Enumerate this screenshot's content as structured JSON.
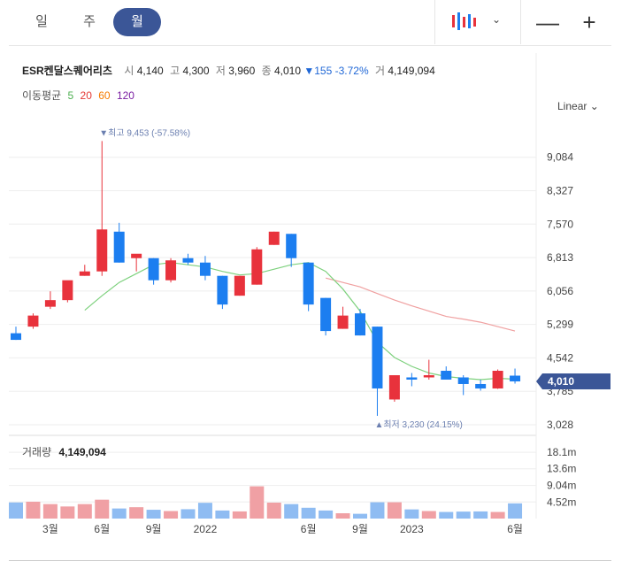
{
  "periods": [
    "일",
    "주",
    "월"
  ],
  "active_period": 2,
  "stock": {
    "name": "ESR켄달스퀘어리츠",
    "open_label": "시",
    "open": "4,140",
    "high_label": "고",
    "high": "4,300",
    "low_label": "저",
    "low": "3,960",
    "close_label": "종",
    "close": "4,010",
    "change": "▼155 -3.72%",
    "volume_label": "거",
    "volume": "4,149,094"
  },
  "ma": {
    "label": "이동평균",
    "periods": [
      "5",
      "20",
      "60",
      "120"
    ],
    "colors": [
      "#4caf50",
      "#e53935",
      "#f57c00",
      "#7b1fa2"
    ]
  },
  "scale_mode": "Linear",
  "colors": {
    "up": "#e8323c",
    "down": "#1c7ef0",
    "ma5": "#7ed17e",
    "ma20": "#f0a0a0",
    "badge": "#3b5697",
    "vol_up": "#f0a0a4",
    "vol_down": "#8fbcf2"
  },
  "chart_data": {
    "type": "candlestick",
    "x_labels": [
      "3월",
      "6월",
      "9월",
      "2022",
      "6월",
      "9월",
      "2023",
      "6월"
    ],
    "x_label_index": [
      2,
      5,
      8,
      11,
      17,
      20,
      23,
      29
    ],
    "y_ticks": [
      "9,084",
      "8,327",
      "7,570",
      "6,813",
      "6,056",
      "5,299",
      "4,542",
      "3,785",
      "3,028"
    ],
    "y_tick_values": [
      9084,
      8327,
      7570,
      6813,
      6056,
      5299,
      4542,
      3785,
      3028
    ],
    "ylim": [
      3028,
      9840
    ],
    "current_price_label": "4,010",
    "current_price": 4010,
    "max_annotation": "최고 9,453 (-57.58%)",
    "min_annotation": "최저 3,230 (24.15%)",
    "ohlc": [
      [
        5100,
        5250,
        4950,
        4950
      ],
      [
        5250,
        5550,
        5200,
        5500
      ],
      [
        5700,
        6050,
        5650,
        5850
      ],
      [
        5850,
        6250,
        5800,
        6300
      ],
      [
        6400,
        6650,
        6400,
        6500
      ],
      [
        6500,
        9453,
        6400,
        7450
      ],
      [
        7400,
        7600,
        6700,
        6700
      ],
      [
        6800,
        6850,
        6500,
        6900
      ],
      [
        6800,
        6800,
        6200,
        6300
      ],
      [
        6300,
        6800,
        6250,
        6750
      ],
      [
        6800,
        6900,
        6650,
        6700
      ],
      [
        6700,
        6850,
        6300,
        6400
      ],
      [
        6400,
        6400,
        5650,
        5750
      ],
      [
        5950,
        6350,
        5950,
        6400
      ],
      [
        6200,
        7050,
        6200,
        7000
      ],
      [
        7100,
        7400,
        7100,
        7400
      ],
      [
        7350,
        7350,
        6600,
        6800
      ],
      [
        6700,
        6700,
        5600,
        5750
      ],
      [
        5900,
        5900,
        5050,
        5150
      ],
      [
        5200,
        5700,
        5200,
        5500
      ],
      [
        5550,
        5650,
        5050,
        5050
      ],
      [
        5250,
        5250,
        3230,
        3850
      ],
      [
        3600,
        4100,
        3550,
        4150
      ],
      [
        4100,
        4200,
        3900,
        4050
      ],
      [
        4100,
        4500,
        4050,
        4150
      ],
      [
        4250,
        4350,
        4050,
        4050
      ],
      [
        4100,
        4150,
        3700,
        3950
      ],
      [
        3950,
        4050,
        3800,
        3850
      ],
      [
        3850,
        4280,
        3840,
        4250
      ],
      [
        4140,
        4300,
        3960,
        4010
      ]
    ],
    "ma5": [
      null,
      null,
      null,
      null,
      5620,
      5950,
      6250,
      6450,
      6650,
      6700,
      6650,
      6600,
      6500,
      6420,
      6450,
      6550,
      6650,
      6700,
      6500,
      6100,
      5600,
      4900,
      4550,
      4350,
      4200,
      4120,
      4080,
      4050,
      4080,
      4060
    ],
    "ma20": [
      null,
      null,
      null,
      null,
      null,
      null,
      null,
      null,
      null,
      null,
      null,
      null,
      null,
      null,
      null,
      null,
      null,
      null,
      6350,
      6250,
      6150,
      6000,
      5850,
      5720,
      5600,
      5480,
      5420,
      5350,
      5250,
      5150
    ],
    "volume": [
      4.4,
      4.6,
      3.95,
      3.3,
      3.95,
      5.15,
      2.75,
      3.1,
      2.4,
      2.05,
      2.55,
      4.3,
      2.2,
      1.95,
      8.8,
      4.35,
      3.95,
      2.95,
      2.2,
      1.45,
      1.3,
      4.45,
      4.45,
      2.5,
      2.05,
      1.8,
      1.9,
      1.95,
      1.8,
      4.149094
    ],
    "volume_ticks": [
      "18.1m",
      "13.6m",
      "9.04m",
      "4.52m"
    ],
    "volume_tick_values": [
      18.1,
      13.6,
      9.04,
      4.52
    ],
    "volume_label": "거래량",
    "volume_value": "4,149,094"
  }
}
